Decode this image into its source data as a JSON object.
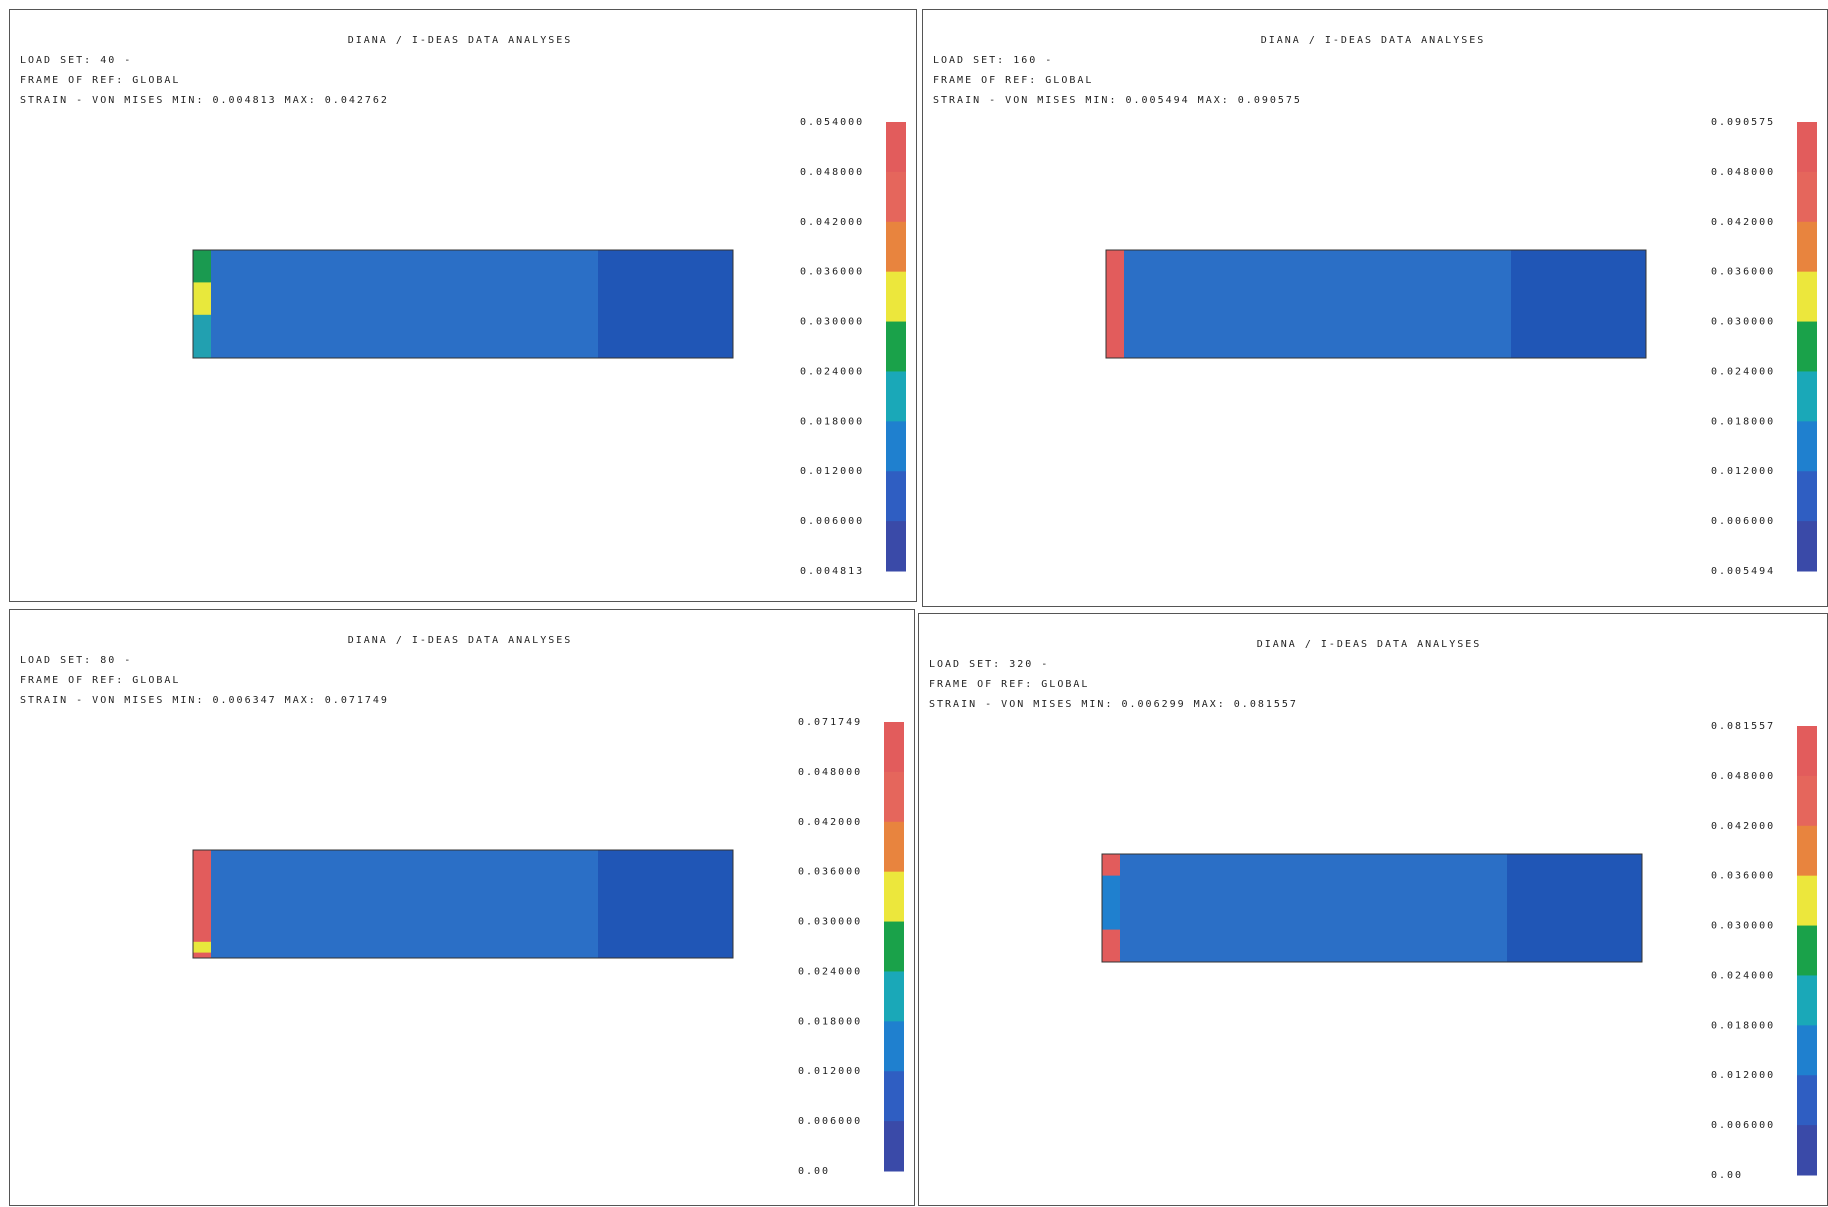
{
  "panels": [
    {
      "title": "DIANA / I-DEAS DATA ANALYSES",
      "load_set": "LOAD SET: 40 -",
      "frame": "FRAME OF REF: GLOBAL",
      "result": "STRAIN - VON MISES MIN: 0.004813 MAX: 0.042762",
      "legend": [
        "0.054000",
        "0.048000",
        "0.042000",
        "0.036000",
        "0.030000",
        "0.024000",
        "0.018000",
        "0.012000",
        "0.006000",
        "0.004813"
      ]
    },
    {
      "title": "DIANA / I-DEAS DATA ANALYSES",
      "load_set": "LOAD SET: 160 -",
      "frame": "FRAME OF REF: GLOBAL",
      "result": "STRAIN - VON MISES MIN: 0.005494 MAX: 0.090575",
      "legend": [
        "0.090575",
        "0.048000",
        "0.042000",
        "0.036000",
        "0.030000",
        "0.024000",
        "0.018000",
        "0.012000",
        "0.006000",
        "0.005494"
      ]
    },
    {
      "title": "DIANA / I-DEAS DATA ANALYSES",
      "load_set": "LOAD SET: 80 -",
      "frame": "FRAME OF REF: GLOBAL",
      "result": "STRAIN - VON MISES MIN: 0.006347 MAX: 0.071749",
      "legend": [
        "0.071749",
        "0.048000",
        "0.042000",
        "0.036000",
        "0.030000",
        "0.024000",
        "0.018000",
        "0.012000",
        "0.006000",
        "0.00"
      ]
    },
    {
      "title": "DIANA / I-DEAS DATA ANALYSES",
      "load_set": "LOAD SET: 320 -",
      "frame": "FRAME OF REF: GLOBAL",
      "result": "STRAIN - VON MISES MIN: 0.006299 MAX: 0.081557",
      "legend": [
        "0.081557",
        "0.048000",
        "0.042000",
        "0.036000",
        "0.030000",
        "0.024000",
        "0.018000",
        "0.012000",
        "0.006000",
        "0.00"
      ]
    }
  ]
}
